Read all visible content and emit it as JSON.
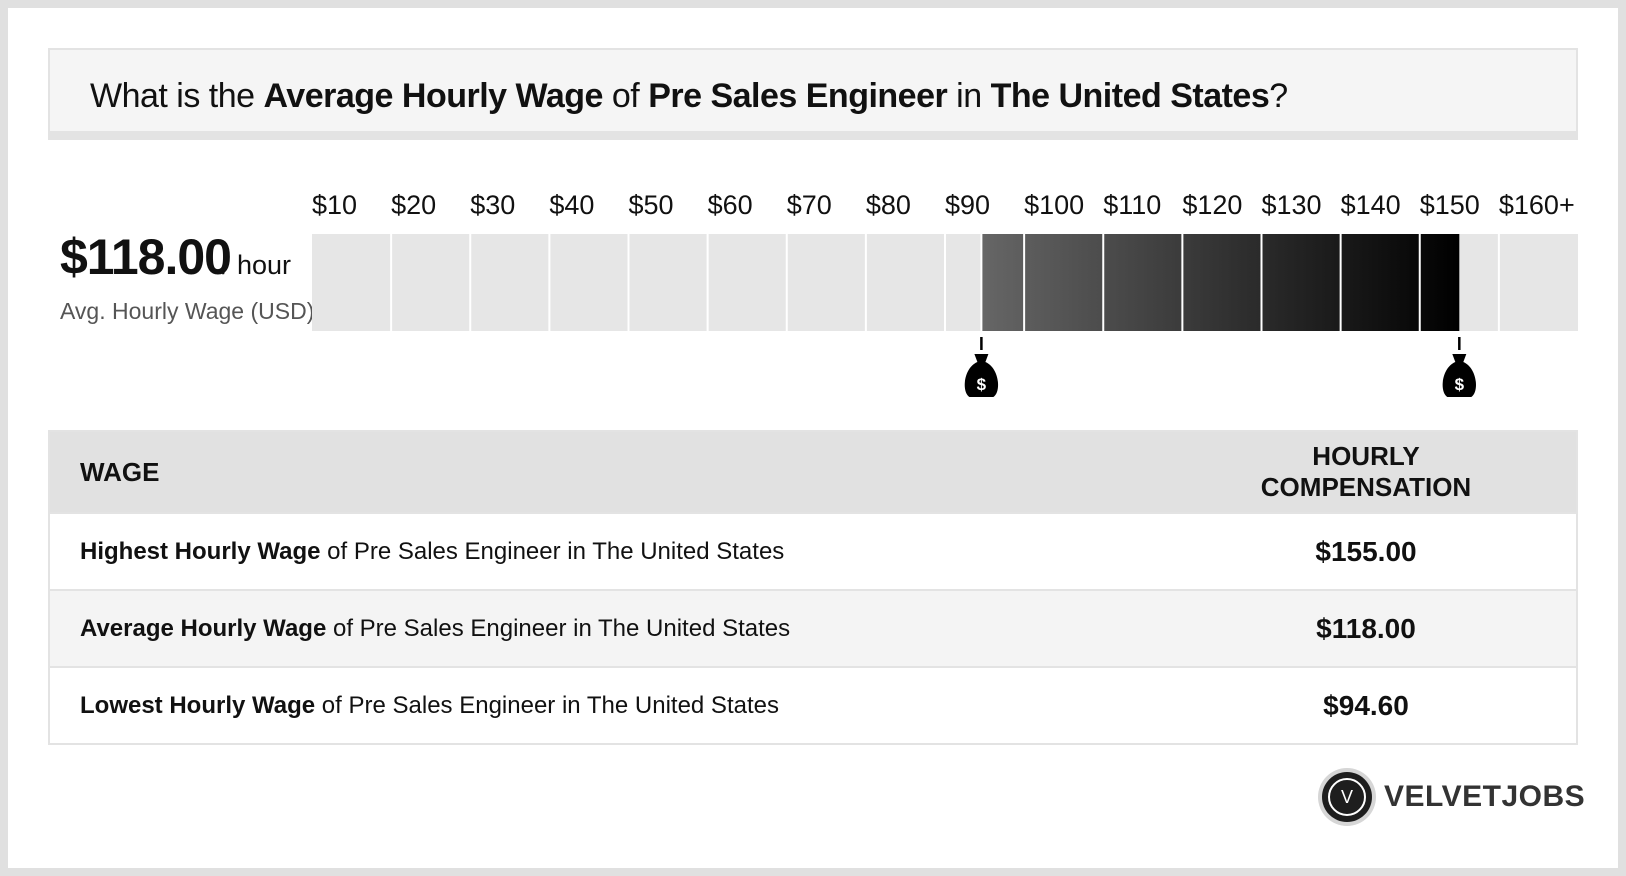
{
  "title": {
    "p1": "What is the ",
    "b1": "Average Hourly Wage",
    "p2": " of ",
    "b2": "Pre Sales Engineer",
    "p3": " in ",
    "b3": "The United States",
    "p4": "?"
  },
  "summary": {
    "value": "$118.00",
    "unit": "/ hour",
    "caption": "Avg. Hourly Wage (USD)"
  },
  "chart_data": {
    "type": "bar",
    "tick_labels": [
      "$10",
      "$20",
      "$30",
      "$40",
      "$50",
      "$60",
      "$70",
      "$80",
      "$90",
      "$100",
      "$110",
      "$120",
      "$130",
      "$140",
      "$150",
      "$160+"
    ],
    "x_values": [
      10,
      20,
      30,
      40,
      50,
      60,
      70,
      80,
      90,
      100,
      110,
      120,
      130,
      140,
      150,
      160
    ],
    "range_low": 94.6,
    "range_high": 155,
    "average": 118
  },
  "colors": {
    "track": "#e6e6e6",
    "range_light": "#666666",
    "range_dark": "#000000",
    "marker": "#000000"
  },
  "icons": {
    "low_marker": "money-bag-icon",
    "high_marker": "money-bag-icon",
    "logo": "velvetjobs-v-icon"
  },
  "table": {
    "headers": {
      "wage": "WAGE",
      "comp": "HOURLY COMPENSATION"
    },
    "rows": [
      {
        "bold": "Highest Hourly Wage",
        "rest": " of Pre Sales Engineer in The United States",
        "value": "$155.00"
      },
      {
        "bold": "Average Hourly Wage",
        "rest": " of Pre Sales Engineer in The United States",
        "value": "$118.00"
      },
      {
        "bold": "Lowest Hourly Wage",
        "rest": " of Pre Sales Engineer in The United States",
        "value": "$94.60"
      }
    ]
  },
  "brand": {
    "logo_letter": "V",
    "name": "VELVETJOBS"
  }
}
